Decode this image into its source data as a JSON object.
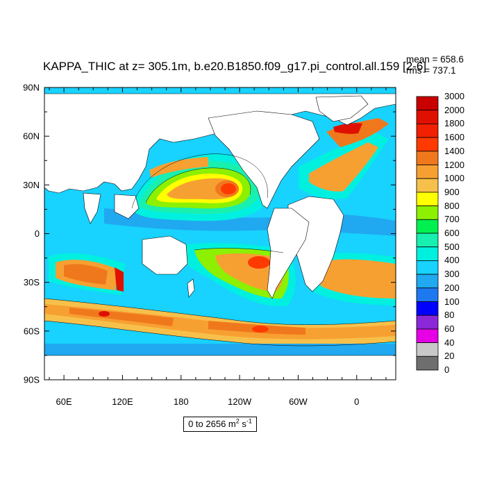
{
  "title": "KAPPA_THIC at z= 305.1m, b.e20.B1850.f09_g17.pi_control.all.159 [2-6]",
  "stats": {
    "mean": "mean = 658.6",
    "rms": "rms = 737.1"
  },
  "lat_labels": [
    "90N",
    "60N",
    "30N",
    "0",
    "30S",
    "60S",
    "90S"
  ],
  "lon_labels": [
    "60E",
    "120E",
    "180",
    "120W",
    "60W",
    "0"
  ],
  "colorbar": {
    "labels": [
      "3000",
      "2000",
      "1800",
      "1600",
      "1400",
      "1200",
      "1000",
      "900",
      "800",
      "700",
      "600",
      "500",
      "400",
      "300",
      "200",
      "100",
      "80",
      "60",
      "40",
      "20",
      "0"
    ],
    "colors": [
      "#c80000",
      "#e01000",
      "#f02000",
      "#ff3a00",
      "#f0781c",
      "#f7a032",
      "#f7c04a",
      "#ffff00",
      "#8cf000",
      "#00f050",
      "#18f0b0",
      "#00f0e0",
      "#18d2ff",
      "#20a8f0",
      "#1e78f0",
      "#0000ff",
      "#8a28d8",
      "#e600e6",
      "#c8c8c8",
      "#6e6e6e"
    ]
  },
  "range": {
    "prefix": "0 to 2656 m",
    "sup1": "2",
    "mid": " s",
    "sup2": "-1"
  },
  "colors": {
    "land": "#ffffff",
    "contour": "#000000"
  }
}
